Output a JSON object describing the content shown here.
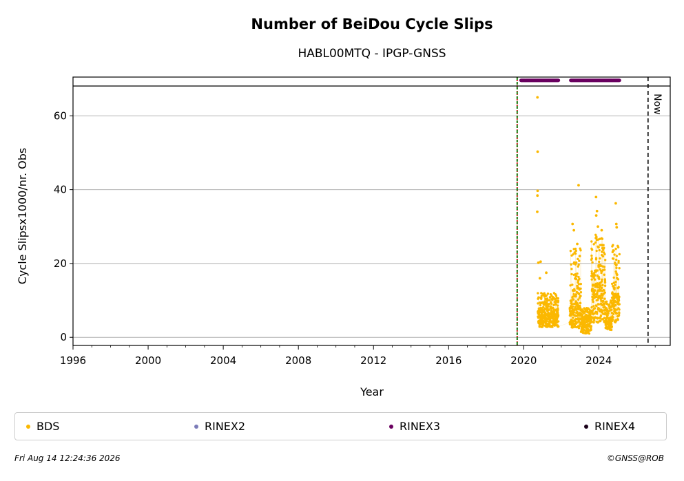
{
  "chart_data": {
    "type": "scatter",
    "title": "Number of BeiDou Cycle Slips",
    "subtitle": "HABL00MTQ - IPGP-GNSS",
    "xlabel": "Year",
    "ylabel": "Cycle Slipsx1000/nr. Obs",
    "xlim": [
      1996,
      2027.8
    ],
    "ylim": [
      -2.2,
      70.5
    ],
    "main_ylim": [
      -2.2,
      68.2
    ],
    "x_ticks": [
      1996,
      2000,
      2004,
      2008,
      2012,
      2016,
      2020,
      2024
    ],
    "x_tick_labels": [
      "1996",
      "2000",
      "2004",
      "2008",
      "2012",
      "2016",
      "2020",
      "2024"
    ],
    "y_ticks": [
      0,
      20,
      40,
      60
    ],
    "y_tick_labels": [
      "0",
      "20",
      "40",
      "60"
    ],
    "grid": "horizontal",
    "vertical_markers": [
      {
        "x": 2019.65,
        "color": "#cc0000",
        "style": "dotted"
      },
      {
        "x": 2019.65,
        "color": "#007700",
        "style": "dashed"
      },
      {
        "x": 2026.62,
        "color": "#000000",
        "style": "dashed",
        "label": "Now"
      }
    ],
    "file_availability": {
      "series": "RINEX3",
      "y": 69.6,
      "ranges": [
        [
          2019.85,
          2021.85
        ],
        [
          2022.5,
          2025.1
        ]
      ]
    },
    "series": [
      {
        "name": "BDS",
        "color": "#fbb800",
        "segments": [
          {
            "start": 2020.75,
            "end": 2021.85,
            "low": 2.8,
            "mid": 6.0,
            "high": 12.0
          },
          {
            "start": 2022.45,
            "end": 2023.05,
            "low": 2.5,
            "mid": 9.0,
            "high": 25.0
          },
          {
            "start": 2023.05,
            "end": 2023.6,
            "low": 1.0,
            "mid": 5.0,
            "high": 8.0
          },
          {
            "start": 2023.6,
            "end": 2024.35,
            "low": 4.0,
            "mid": 14.0,
            "high": 28.0
          },
          {
            "start": 2024.35,
            "end": 2024.7,
            "low": 2.0,
            "mid": 5.0,
            "high": 10.0
          },
          {
            "start": 2024.7,
            "end": 2025.1,
            "low": 4.0,
            "mid": 11.0,
            "high": 25.0
          }
        ],
        "outliers": [
          {
            "x": 2020.73,
            "y": 65.0
          },
          {
            "x": 2020.74,
            "y": 50.3
          },
          {
            "x": 2020.74,
            "y": 39.7
          },
          {
            "x": 2020.73,
            "y": 38.4
          },
          {
            "x": 2020.72,
            "y": 34.0
          },
          {
            "x": 2020.78,
            "y": 20.2
          },
          {
            "x": 2020.9,
            "y": 20.5
          },
          {
            "x": 2020.86,
            "y": 16.0
          },
          {
            "x": 2021.2,
            "y": 17.5
          },
          {
            "x": 2022.6,
            "y": 30.7
          },
          {
            "x": 2022.67,
            "y": 29.0
          },
          {
            "x": 2022.85,
            "y": 25.3
          },
          {
            "x": 2022.92,
            "y": 41.2
          },
          {
            "x": 2022.98,
            "y": 22.0
          },
          {
            "x": 2023.85,
            "y": 38.0
          },
          {
            "x": 2023.9,
            "y": 34.2
          },
          {
            "x": 2023.86,
            "y": 33.0
          },
          {
            "x": 2023.95,
            "y": 30.0
          },
          {
            "x": 2024.15,
            "y": 29.0
          },
          {
            "x": 2024.9,
            "y": 36.3
          },
          {
            "x": 2024.93,
            "y": 30.7
          },
          {
            "x": 2024.95,
            "y": 29.8
          }
        ]
      },
      {
        "name": "RINEX2",
        "color": "#7b7bb8"
      },
      {
        "name": "RINEX3",
        "color": "#6a0060"
      },
      {
        "name": "RINEX4",
        "color": "#1a0019"
      }
    ]
  },
  "legend": [
    {
      "label": "BDS",
      "color": "#fbb800"
    },
    {
      "label": "RINEX2",
      "color": "#7b7bb8"
    },
    {
      "label": "RINEX3",
      "color": "#6a0060"
    },
    {
      "label": "RINEX4",
      "color": "#1a0019"
    }
  ],
  "footer": {
    "timestamp": "Fri Aug 14 12:24:36 2026",
    "credit": "©GNSS@ROB"
  }
}
